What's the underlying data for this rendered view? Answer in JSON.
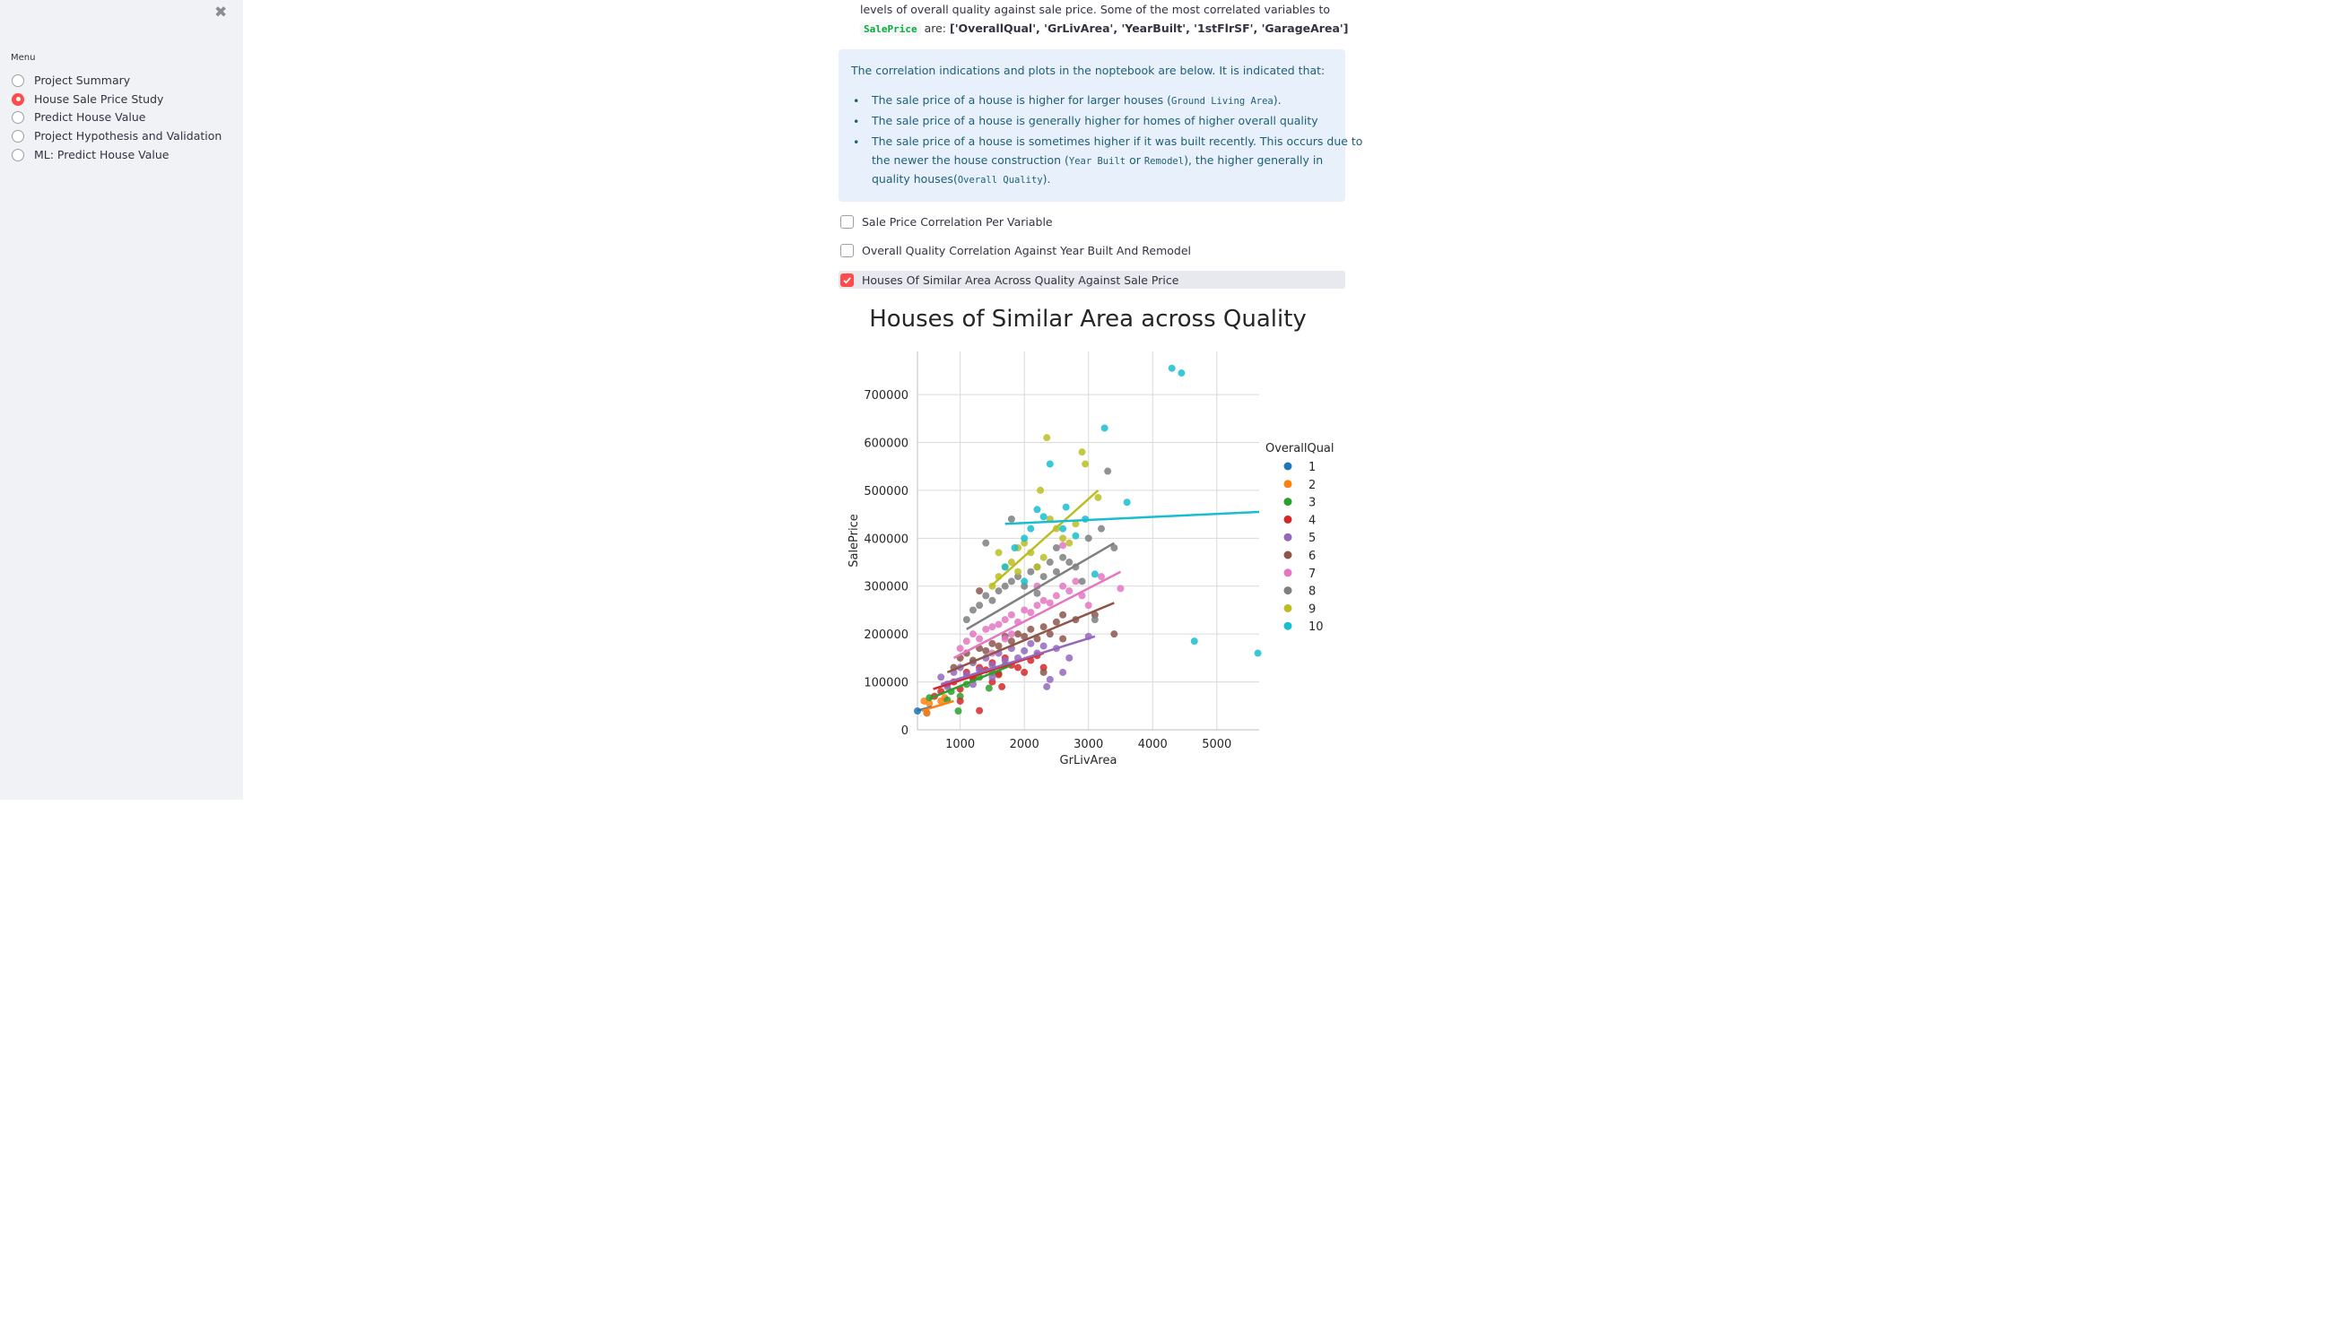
{
  "sidebar": {
    "menu_label": "Menu",
    "items": [
      {
        "label": "Project Summary",
        "selected": false
      },
      {
        "label": "House Sale Price Study",
        "selected": true
      },
      {
        "label": "Predict House Value",
        "selected": false
      },
      {
        "label": "Project Hypothesis and Validation",
        "selected": false
      },
      {
        "label": "ML: Predict House Value",
        "selected": false
      }
    ],
    "close_icon": "close-icon",
    "accent_color": "#ff4b4b"
  },
  "main": {
    "intro_line1": "levels of overall quality against sale price. Some of the most correlated variables to",
    "intro_code": "SalePrice",
    "intro_line2_mid": "are:",
    "intro_vars": "['OverallQual', 'GrLivArea', 'YearBuilt', '1stFlrSF', 'GarageArea']",
    "info": {
      "intro": "The correlation indications and plots in the noptebook are below. It is indicated that:",
      "b1_pre": "The sale price of a house is higher for larger houses (",
      "b1_code": "Ground Living Area",
      "b1_post": ").",
      "b2": "The sale price of a house is generally higher for homes of higher overall quality",
      "b3_l1": "The sale price of a house is sometimes higher if it was built recently. This occurs due to",
      "b3_l2_pre": "the newer the house construction (",
      "b3_l2_code1": "Year Built",
      "b3_l2_or": " or ",
      "b3_l2_code2": "Remodel",
      "b3_l2_post": "), the higher generally in",
      "b3_l3_pre": "quality houses(",
      "b3_l3_code": "Overall Quality",
      "b3_l3_post": ")."
    },
    "checkboxes": [
      {
        "label": "Sale Price Correlation Per Variable",
        "checked": false
      },
      {
        "label": "Overall Quality Correlation Against Year Built And Remodel",
        "checked": false
      },
      {
        "label": "Houses Of Similar Area Across Quality Against Sale Price",
        "checked": true
      }
    ]
  },
  "chart_data": {
    "type": "scatter",
    "title": "Houses of Similar Area across Quality",
    "xlabel": "GrLivArea",
    "ylabel": "SalePrice",
    "xlim": [
      334,
      5660
    ],
    "ylim": [
      0,
      790000
    ],
    "xticks": [
      1000,
      2000,
      3000,
      4000,
      5000
    ],
    "yticks": [
      0,
      100000,
      200000,
      300000,
      400000,
      500000,
      600000,
      700000
    ],
    "grid": true,
    "legend_title": "OverallQual",
    "legend_placement": "right",
    "series": [
      {
        "name": "1",
        "color": "#1f77b4",
        "points": [
          [
            334,
            39300
          ],
          [
            480,
            35000
          ]
        ],
        "fit": [
          [
            334,
            40000
          ],
          [
            560,
            48000
          ]
        ]
      },
      {
        "name": "2",
        "color": "#ff7f0e",
        "points": [
          [
            438,
            60000
          ],
          [
            480,
            34900
          ],
          [
            520,
            55000
          ],
          [
            700,
            60000
          ],
          [
            760,
            67000
          ]
        ],
        "fit": [
          [
            400,
            40000
          ],
          [
            900,
            60000
          ]
        ]
      },
      {
        "name": "3",
        "color": "#2ca02c",
        "points": [
          [
            520,
            67000
          ],
          [
            860,
            80000
          ],
          [
            970,
            39300
          ],
          [
            1100,
            95000
          ],
          [
            1200,
            105000
          ],
          [
            1300,
            110000
          ],
          [
            1450,
            87000
          ],
          [
            1500,
            120000
          ],
          [
            1600,
            118000
          ],
          [
            1700,
            135000
          ],
          [
            1000,
            70000
          ],
          [
            800,
            62000
          ]
        ],
        "fit": [
          [
            520,
            65000
          ],
          [
            1800,
            135000
          ]
        ]
      },
      {
        "name": "4",
        "color": "#d62728",
        "points": [
          [
            600,
            70000
          ],
          [
            700,
            80000
          ],
          [
            800,
            95000
          ],
          [
            900,
            100000
          ],
          [
            1000,
            85000
          ],
          [
            1100,
            120000
          ],
          [
            1200,
            110000
          ],
          [
            1300,
            130000
          ],
          [
            1400,
            125000
          ],
          [
            1500,
            140000
          ],
          [
            1600,
            115000
          ],
          [
            1700,
            150000
          ],
          [
            1800,
            135000
          ],
          [
            1900,
            130000
          ],
          [
            2000,
            120000
          ],
          [
            2100,
            145000
          ],
          [
            2200,
            155000
          ],
          [
            1300,
            40000
          ],
          [
            1000,
            60000
          ],
          [
            1500,
            100000
          ],
          [
            1650,
            90000
          ],
          [
            2300,
            130000
          ]
        ],
        "fit": [
          [
            580,
            85000
          ],
          [
            2300,
            160000
          ]
        ]
      },
      {
        "name": "5",
        "color": "#9467bd",
        "points": [
          [
            700,
            110000
          ],
          [
            800,
            90000
          ],
          [
            900,
            120000
          ],
          [
            1000,
            130000
          ],
          [
            1100,
            115000
          ],
          [
            1200,
            140000
          ],
          [
            1300,
            125000
          ],
          [
            1400,
            150000
          ],
          [
            1500,
            135000
          ],
          [
            1600,
            160000
          ],
          [
            1700,
            145000
          ],
          [
            1800,
            170000
          ],
          [
            1900,
            150000
          ],
          [
            2000,
            165000
          ],
          [
            2100,
            180000
          ],
          [
            2200,
            160000
          ],
          [
            2300,
            175000
          ],
          [
            2400,
            105000
          ],
          [
            2500,
            170000
          ],
          [
            2700,
            150000
          ],
          [
            3000,
            195000
          ],
          [
            1200,
            95000
          ],
          [
            1500,
            110000
          ],
          [
            2350,
            90000
          ],
          [
            2600,
            120000
          ]
        ],
        "fit": [
          [
            700,
            95000
          ],
          [
            3100,
            195000
          ]
        ]
      },
      {
        "name": "6",
        "color": "#8c564b",
        "points": [
          [
            900,
            130000
          ],
          [
            1000,
            150000
          ],
          [
            1100,
            160000
          ],
          [
            1200,
            145000
          ],
          [
            1300,
            170000
          ],
          [
            1400,
            165000
          ],
          [
            1500,
            180000
          ],
          [
            1600,
            175000
          ],
          [
            1700,
            195000
          ],
          [
            1800,
            185000
          ],
          [
            1900,
            200000
          ],
          [
            2000,
            195000
          ],
          [
            2100,
            210000
          ],
          [
            2200,
            190000
          ],
          [
            2300,
            215000
          ],
          [
            2400,
            200000
          ],
          [
            2500,
            225000
          ],
          [
            2600,
            240000
          ],
          [
            2800,
            230000
          ],
          [
            3100,
            240000
          ],
          [
            3400,
            200000
          ],
          [
            2600,
            190000
          ],
          [
            1300,
            290000
          ],
          [
            2300,
            120000
          ]
        ],
        "fit": [
          [
            800,
            120000
          ],
          [
            3400,
            265000
          ]
        ]
      },
      {
        "name": "7",
        "color": "#e377c2",
        "points": [
          [
            1000,
            170000
          ],
          [
            1100,
            185000
          ],
          [
            1200,
            200000
          ],
          [
            1300,
            190000
          ],
          [
            1400,
            210000
          ],
          [
            1500,
            215000
          ],
          [
            1600,
            220000
          ],
          [
            1700,
            230000
          ],
          [
            1800,
            240000
          ],
          [
            1900,
            225000
          ],
          [
            2000,
            250000
          ],
          [
            2100,
            245000
          ],
          [
            2200,
            260000
          ],
          [
            2300,
            270000
          ],
          [
            2400,
            265000
          ],
          [
            2500,
            280000
          ],
          [
            2600,
            300000
          ],
          [
            2700,
            290000
          ],
          [
            2800,
            310000
          ],
          [
            2900,
            280000
          ],
          [
            3000,
            260000
          ],
          [
            3200,
            320000
          ],
          [
            3500,
            295000
          ],
          [
            1500,
            160000
          ],
          [
            1800,
            200000
          ],
          [
            2200,
            300000
          ],
          [
            2600,
            385000
          ],
          [
            1700,
            190000
          ]
        ],
        "fit": [
          [
            900,
            150000
          ],
          [
            3500,
            330000
          ]
        ]
      },
      {
        "name": "8",
        "color": "#7f7f7f",
        "points": [
          [
            1100,
            230000
          ],
          [
            1200,
            250000
          ],
          [
            1300,
            260000
          ],
          [
            1400,
            280000
          ],
          [
            1500,
            270000
          ],
          [
            1600,
            290000
          ],
          [
            1700,
            300000
          ],
          [
            1800,
            310000
          ],
          [
            1900,
            320000
          ],
          [
            2000,
            300000
          ],
          [
            2100,
            330000
          ],
          [
            2200,
            340000
          ],
          [
            2300,
            320000
          ],
          [
            2400,
            350000
          ],
          [
            2500,
            330000
          ],
          [
            2600,
            360000
          ],
          [
            2700,
            350000
          ],
          [
            2800,
            340000
          ],
          [
            2900,
            310000
          ],
          [
            3000,
            400000
          ],
          [
            3200,
            420000
          ],
          [
            3300,
            540000
          ],
          [
            3400,
            380000
          ],
          [
            3100,
            230000
          ],
          [
            1400,
            390000
          ],
          [
            1800,
            440000
          ],
          [
            2500,
            380000
          ],
          [
            2200,
            285000
          ]
        ],
        "fit": [
          [
            1100,
            210000
          ],
          [
            3400,
            390000
          ]
        ]
      },
      {
        "name": "9",
        "color": "#bcbd22",
        "points": [
          [
            1500,
            300000
          ],
          [
            1600,
            320000
          ],
          [
            1700,
            340000
          ],
          [
            1800,
            350000
          ],
          [
            1900,
            380000
          ],
          [
            2000,
            390000
          ],
          [
            2100,
            370000
          ],
          [
            2200,
            340000
          ],
          [
            2300,
            360000
          ],
          [
            2400,
            440000
          ],
          [
            2500,
            420000
          ],
          [
            2600,
            400000
          ],
          [
            2700,
            390000
          ],
          [
            2800,
            430000
          ],
          [
            2900,
            580000
          ],
          [
            2950,
            555000
          ],
          [
            2350,
            610000
          ],
          [
            2250,
            500000
          ],
          [
            3150,
            485000
          ],
          [
            1600,
            370000
          ],
          [
            1900,
            330000
          ]
        ],
        "fit": [
          [
            1480,
            300000
          ],
          [
            3150,
            500000
          ]
        ]
      },
      {
        "name": "10",
        "color": "#17becf",
        "points": [
          [
            1700,
            340000
          ],
          [
            1850,
            380000
          ],
          [
            2000,
            400000
          ],
          [
            2100,
            420000
          ],
          [
            2200,
            460000
          ],
          [
            2300,
            445000
          ],
          [
            2400,
            555000
          ],
          [
            2600,
            420000
          ],
          [
            2650,
            465000
          ],
          [
            2800,
            405000
          ],
          [
            2950,
            440000
          ],
          [
            3100,
            325000
          ],
          [
            3250,
            630000
          ],
          [
            3600,
            475000
          ],
          [
            4300,
            755000
          ],
          [
            4450,
            745000
          ],
          [
            4650,
            185000
          ],
          [
            5640,
            160000
          ],
          [
            2000,
            310000
          ]
        ],
        "fit": [
          [
            1700,
            430000
          ],
          [
            5660,
            455000
          ]
        ]
      }
    ]
  }
}
